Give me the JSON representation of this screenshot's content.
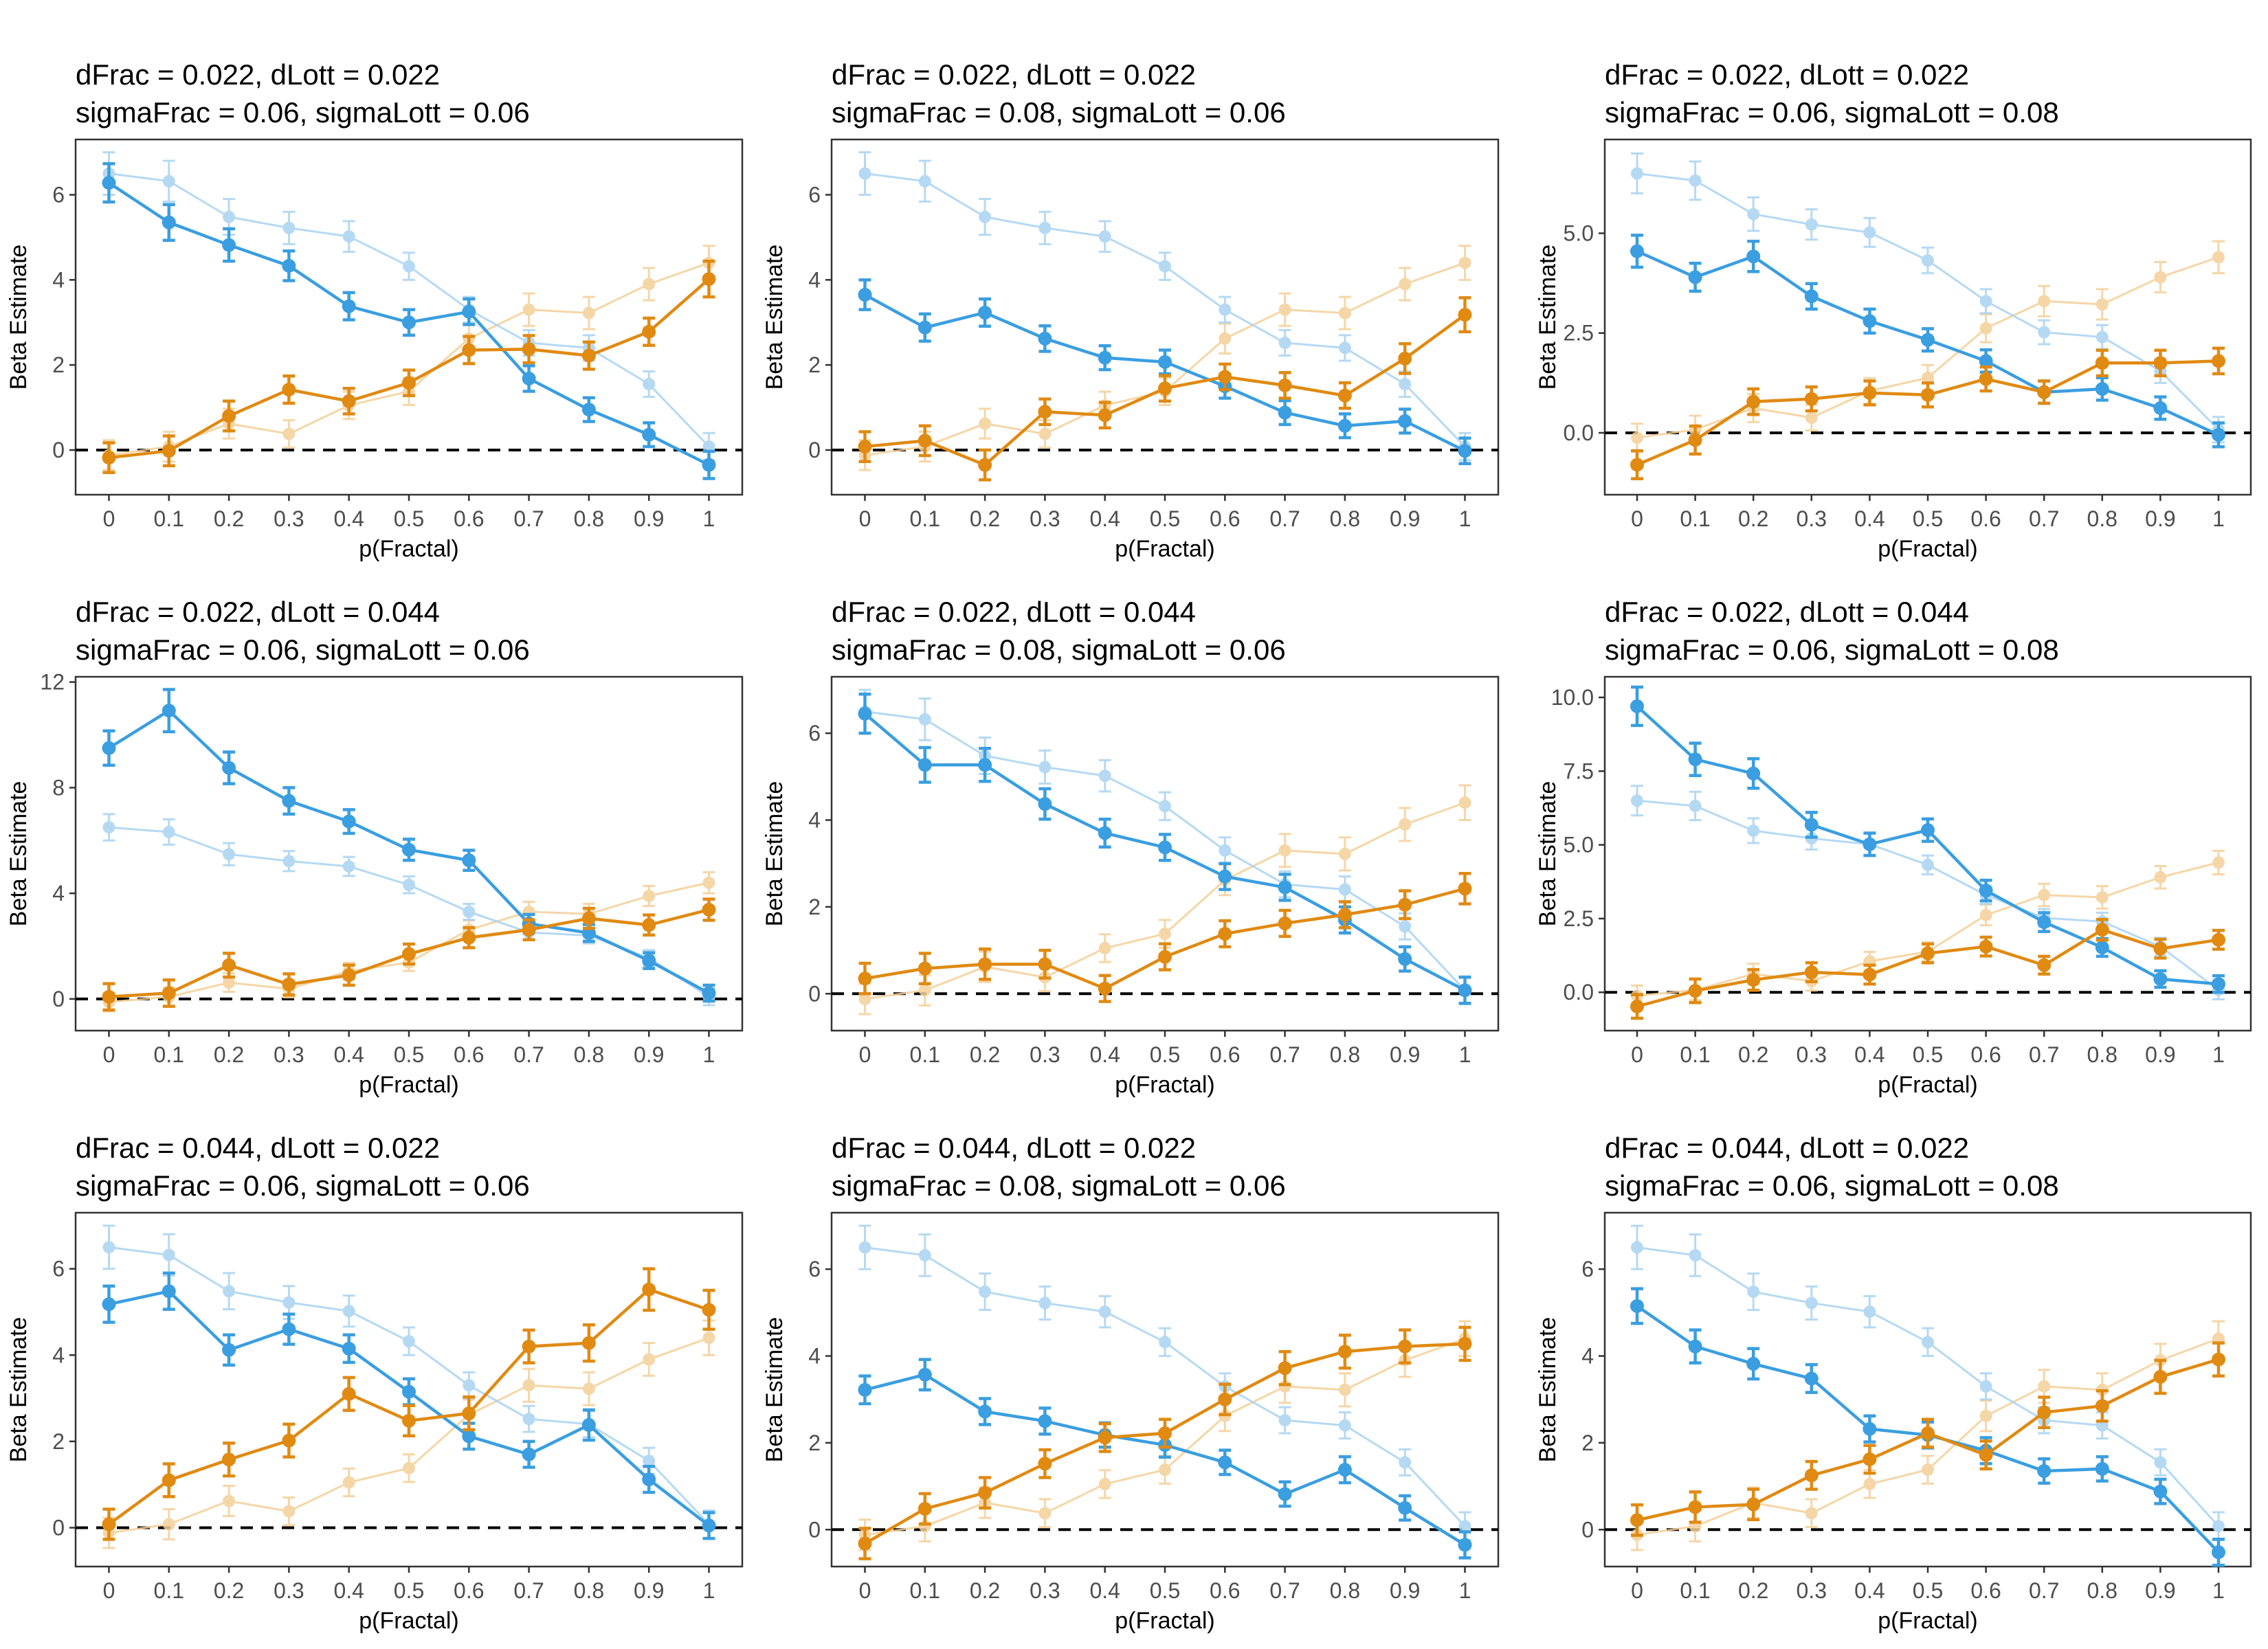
{
  "colors": {
    "fractal": "#3a9ee0",
    "lottery": "#e08a12",
    "fractal_ref": "#a9d3f2",
    "lottery_ref": "#f4cf98",
    "zero_line": "#000000",
    "frame": "#333333"
  },
  "chart_data": [
    {
      "type": "line",
      "title": [
        "dFrac = 0.022, dLott = 0.022",
        "sigmaFrac = 0.06, sigmaLott = 0.06"
      ],
      "xlabel": "p(Fractal)",
      "ylabel": "Beta Estimate",
      "x": [
        0,
        0.1,
        0.2,
        0.3,
        0.4,
        0.5,
        0.6,
        0.7,
        0.8,
        0.9,
        1
      ],
      "xticks": [
        "0",
        "0.1",
        "0.2",
        "0.3",
        "0.4",
        "0.5",
        "0.6",
        "0.7",
        "0.8",
        "0.9",
        "1"
      ],
      "ylim": [
        -1.05,
        7.3
      ],
      "yticks": [
        0,
        2,
        4,
        6
      ],
      "ytick_labels": [
        "0",
        "2",
        "4",
        "6"
      ],
      "reference_line": 0,
      "series": [
        {
          "role": "fractal",
          "values": [
            6.28,
            5.35,
            4.82,
            4.33,
            3.38,
            3.0,
            3.25,
            1.68,
            0.95,
            0.36,
            -0.35
          ],
          "err": [
            0.45,
            0.42,
            0.38,
            0.35,
            0.32,
            0.3,
            0.3,
            0.3,
            0.28,
            0.28,
            0.32
          ]
        },
        {
          "role": "lottery",
          "values": [
            -0.18,
            -0.02,
            0.8,
            1.42,
            1.15,
            1.58,
            2.35,
            2.37,
            2.22,
            2.78,
            4.02
          ],
          "err": [
            0.35,
            0.35,
            0.35,
            0.32,
            0.3,
            0.3,
            0.32,
            0.32,
            0.32,
            0.32,
            0.42
          ]
        }
      ]
    },
    {
      "type": "line",
      "title": [
        "dFrac = 0.022, dLott = 0.022",
        "sigmaFrac = 0.08, sigmaLott = 0.06"
      ],
      "xlabel": "p(Fractal)",
      "ylabel": "Beta Estimate",
      "x": [
        0,
        0.1,
        0.2,
        0.3,
        0.4,
        0.5,
        0.6,
        0.7,
        0.8,
        0.9,
        1
      ],
      "xticks": [
        "0",
        "0.1",
        "0.2",
        "0.3",
        "0.4",
        "0.5",
        "0.6",
        "0.7",
        "0.8",
        "0.9",
        "1"
      ],
      "ylim": [
        -1.05,
        7.3
      ],
      "yticks": [
        0,
        2,
        4,
        6
      ],
      "ytick_labels": [
        "0",
        "2",
        "4",
        "6"
      ],
      "reference_line": 0,
      "series": [
        {
          "role": "fractal",
          "values": [
            3.65,
            2.88,
            3.23,
            2.62,
            2.17,
            2.07,
            1.5,
            0.88,
            0.57,
            0.68,
            -0.02
          ],
          "err": [
            0.35,
            0.32,
            0.32,
            0.3,
            0.28,
            0.28,
            0.28,
            0.28,
            0.28,
            0.28,
            0.3
          ]
        },
        {
          "role": "lottery",
          "values": [
            0.08,
            0.22,
            -0.35,
            0.9,
            0.82,
            1.45,
            1.72,
            1.52,
            1.28,
            2.15,
            3.18
          ],
          "err": [
            0.35,
            0.35,
            0.35,
            0.3,
            0.3,
            0.3,
            0.3,
            0.3,
            0.3,
            0.35,
            0.4
          ]
        }
      ]
    },
    {
      "type": "line",
      "title": [
        "dFrac = 0.022, dLott = 0.022",
        "sigmaFrac = 0.06, sigmaLott = 0.08"
      ],
      "xlabel": "p(Fractal)",
      "ylabel": "Beta Estimate",
      "x": [
        0,
        0.1,
        0.2,
        0.3,
        0.4,
        0.5,
        0.6,
        0.7,
        0.8,
        0.9,
        1
      ],
      "xticks": [
        "0",
        "0.1",
        "0.2",
        "0.3",
        "0.4",
        "0.5",
        "0.6",
        "0.7",
        "0.8",
        "0.9",
        "1"
      ],
      "ylim": [
        -1.55,
        7.35
      ],
      "yticks": [
        0,
        2.5,
        5
      ],
      "ytick_labels": [
        "0.0",
        "2.5",
        "5.0"
      ],
      "reference_line": 0,
      "series": [
        {
          "role": "fractal",
          "values": [
            4.55,
            3.9,
            4.42,
            3.42,
            2.8,
            2.33,
            1.8,
            1.02,
            1.1,
            0.62,
            -0.05
          ],
          "err": [
            0.4,
            0.35,
            0.38,
            0.32,
            0.3,
            0.28,
            0.28,
            0.28,
            0.28,
            0.28,
            0.3
          ]
        },
        {
          "role": "lottery",
          "values": [
            -0.8,
            -0.18,
            0.78,
            0.85,
            1.0,
            0.95,
            1.35,
            1.02,
            1.75,
            1.75,
            1.8
          ],
          "err": [
            0.35,
            0.35,
            0.32,
            0.3,
            0.3,
            0.3,
            0.3,
            0.28,
            0.32,
            0.32,
            0.32
          ]
        }
      ]
    },
    {
      "type": "line",
      "title": [
        "dFrac = 0.022, dLott = 0.044",
        "sigmaFrac = 0.06, sigmaLott = 0.06"
      ],
      "xlabel": "p(Fractal)",
      "ylabel": "Beta Estimate",
      "x": [
        0,
        0.1,
        0.2,
        0.3,
        0.4,
        0.5,
        0.6,
        0.7,
        0.8,
        0.9,
        1
      ],
      "xticks": [
        "0",
        "0.1",
        "0.2",
        "0.3",
        "0.4",
        "0.5",
        "0.6",
        "0.7",
        "0.8",
        "0.9",
        "1"
      ],
      "ylim": [
        -1.2,
        12.2
      ],
      "yticks": [
        0,
        4,
        8,
        12
      ],
      "ytick_labels": [
        "0",
        "4",
        "8",
        "12"
      ],
      "reference_line": 0,
      "series": [
        {
          "role": "fractal",
          "values": [
            9.5,
            10.92,
            8.75,
            7.5,
            6.72,
            5.65,
            5.25,
            2.85,
            2.5,
            1.45,
            0.22
          ],
          "err": [
            0.65,
            0.8,
            0.6,
            0.5,
            0.45,
            0.4,
            0.38,
            0.35,
            0.32,
            0.3,
            0.3
          ]
        },
        {
          "role": "lottery",
          "values": [
            0.08,
            0.22,
            1.28,
            0.55,
            0.9,
            1.7,
            2.32,
            2.62,
            3.05,
            2.8,
            3.38
          ],
          "err": [
            0.5,
            0.5,
            0.45,
            0.4,
            0.38,
            0.38,
            0.38,
            0.38,
            0.38,
            0.38,
            0.4
          ]
        }
      ]
    },
    {
      "type": "line",
      "title": [
        "dFrac = 0.022, dLott = 0.044",
        "sigmaFrac = 0.08, sigmaLott = 0.06"
      ],
      "xlabel": "p(Fractal)",
      "ylabel": "Beta Estimate",
      "x": [
        0,
        0.1,
        0.2,
        0.3,
        0.4,
        0.5,
        0.6,
        0.7,
        0.8,
        0.9,
        1
      ],
      "xticks": [
        "0",
        "0.1",
        "0.2",
        "0.3",
        "0.4",
        "0.5",
        "0.6",
        "0.7",
        "0.8",
        "0.9",
        "1"
      ],
      "ylim": [
        -0.85,
        7.3
      ],
      "yticks": [
        0,
        2,
        4,
        6
      ],
      "ytick_labels": [
        "0",
        "2",
        "4",
        "6"
      ],
      "reference_line": 0,
      "series": [
        {
          "role": "fractal",
          "values": [
            6.45,
            5.27,
            5.27,
            4.37,
            3.7,
            3.37,
            2.7,
            2.45,
            1.7,
            0.8,
            0.08
          ],
          "err": [
            0.45,
            0.4,
            0.38,
            0.35,
            0.32,
            0.3,
            0.3,
            0.3,
            0.3,
            0.28,
            0.3
          ]
        },
        {
          "role": "lottery",
          "values": [
            0.35,
            0.58,
            0.68,
            0.68,
            0.12,
            0.85,
            1.38,
            1.62,
            1.82,
            2.05,
            2.42
          ],
          "err": [
            0.35,
            0.35,
            0.35,
            0.32,
            0.3,
            0.3,
            0.3,
            0.3,
            0.3,
            0.32,
            0.35
          ]
        }
      ]
    },
    {
      "type": "line",
      "title": [
        "dFrac = 0.022, dLott = 0.044",
        "sigmaFrac = 0.06, sigmaLott = 0.08"
      ],
      "xlabel": "p(Fractal)",
      "ylabel": "Beta Estimate",
      "x": [
        0,
        0.1,
        0.2,
        0.3,
        0.4,
        0.5,
        0.6,
        0.7,
        0.8,
        0.9,
        1
      ],
      "xticks": [
        "0",
        "0.1",
        "0.2",
        "0.3",
        "0.4",
        "0.5",
        "0.6",
        "0.7",
        "0.8",
        "0.9",
        "1"
      ],
      "ylim": [
        -1.3,
        10.7
      ],
      "yticks": [
        0,
        2.5,
        5,
        7.5,
        10
      ],
      "ytick_labels": [
        "0.0",
        "2.5",
        "5.0",
        "7.5",
        "10.0"
      ],
      "reference_line": 0,
      "series": [
        {
          "role": "fractal",
          "values": [
            9.7,
            7.9,
            7.42,
            5.68,
            5.02,
            5.5,
            3.45,
            2.38,
            1.52,
            0.45,
            0.28
          ],
          "err": [
            0.65,
            0.55,
            0.5,
            0.42,
            0.38,
            0.38,
            0.35,
            0.32,
            0.3,
            0.28,
            0.28
          ]
        },
        {
          "role": "lottery",
          "values": [
            -0.48,
            0.05,
            0.42,
            0.68,
            0.6,
            1.32,
            1.55,
            0.92,
            2.12,
            1.48,
            1.78
          ],
          "err": [
            0.4,
            0.4,
            0.35,
            0.32,
            0.32,
            0.32,
            0.32,
            0.3,
            0.35,
            0.32,
            0.32
          ]
        }
      ]
    },
    {
      "type": "line",
      "title": [
        "dFrac = 0.044, dLott = 0.022",
        "sigmaFrac = 0.06, sigmaLott = 0.06"
      ],
      "xlabel": "p(Fractal)",
      "ylabel": "Beta Estimate",
      "x": [
        0,
        0.1,
        0.2,
        0.3,
        0.4,
        0.5,
        0.6,
        0.7,
        0.8,
        0.9,
        1
      ],
      "xticks": [
        "0",
        "0.1",
        "0.2",
        "0.3",
        "0.4",
        "0.5",
        "0.6",
        "0.7",
        "0.8",
        "0.9",
        "1"
      ],
      "ylim": [
        -0.9,
        7.3
      ],
      "yticks": [
        0,
        2,
        4,
        6
      ],
      "ytick_labels": [
        "0",
        "2",
        "4",
        "6"
      ],
      "reference_line": 0,
      "series": [
        {
          "role": "fractal",
          "values": [
            5.18,
            5.48,
            4.12,
            4.6,
            4.15,
            3.15,
            2.12,
            1.7,
            2.38,
            1.12,
            0.05
          ],
          "err": [
            0.42,
            0.42,
            0.35,
            0.35,
            0.32,
            0.3,
            0.3,
            0.3,
            0.35,
            0.3,
            0.3
          ]
        },
        {
          "role": "lottery",
          "values": [
            0.08,
            1.1,
            1.58,
            2.02,
            3.1,
            2.48,
            2.65,
            4.2,
            4.28,
            5.52,
            5.05
          ],
          "err": [
            0.35,
            0.38,
            0.38,
            0.38,
            0.38,
            0.35,
            0.38,
            0.38,
            0.42,
            0.48,
            0.45
          ]
        }
      ]
    },
    {
      "type": "line",
      "title": [
        "dFrac = 0.044, dLott = 0.022",
        "sigmaFrac = 0.08, sigmaLott = 0.06"
      ],
      "xlabel": "p(Fractal)",
      "ylabel": "Beta Estimate",
      "x": [
        0,
        0.1,
        0.2,
        0.3,
        0.4,
        0.5,
        0.6,
        0.7,
        0.8,
        0.9,
        1
      ],
      "xticks": [
        "0",
        "0.1",
        "0.2",
        "0.3",
        "0.4",
        "0.5",
        "0.6",
        "0.7",
        "0.8",
        "0.9",
        "1"
      ],
      "ylim": [
        -0.85,
        7.3
      ],
      "yticks": [
        0,
        2,
        4,
        6
      ],
      "ytick_labels": [
        "0",
        "2",
        "4",
        "6"
      ],
      "reference_line": 0,
      "series": [
        {
          "role": "fractal",
          "values": [
            3.22,
            3.57,
            2.72,
            2.5,
            2.18,
            1.95,
            1.55,
            0.82,
            1.38,
            0.5,
            -0.35
          ],
          "err": [
            0.32,
            0.35,
            0.3,
            0.3,
            0.28,
            0.28,
            0.28,
            0.28,
            0.3,
            0.28,
            0.3
          ]
        },
        {
          "role": "lottery",
          "values": [
            -0.32,
            0.48,
            0.85,
            1.52,
            2.12,
            2.22,
            3.0,
            3.72,
            4.1,
            4.22,
            4.28
          ],
          "err": [
            0.35,
            0.35,
            0.35,
            0.32,
            0.32,
            0.32,
            0.35,
            0.38,
            0.38,
            0.38,
            0.38
          ]
        }
      ]
    },
    {
      "type": "line",
      "title": [
        "dFrac = 0.044, dLott = 0.022",
        "sigmaFrac = 0.06, sigmaLott = 0.08"
      ],
      "xlabel": "p(Fractal)",
      "ylabel": "Beta Estimate",
      "x": [
        0,
        0.1,
        0.2,
        0.3,
        0.4,
        0.5,
        0.6,
        0.7,
        0.8,
        0.9,
        1
      ],
      "xticks": [
        "0",
        "0.1",
        "0.2",
        "0.3",
        "0.4",
        "0.5",
        "0.6",
        "0.7",
        "0.8",
        "0.9",
        "1"
      ],
      "ylim": [
        -0.85,
        7.3
      ],
      "yticks": [
        0,
        2,
        4,
        6
      ],
      "ytick_labels": [
        "0",
        "2",
        "4",
        "6"
      ],
      "reference_line": 0,
      "series": [
        {
          "role": "fractal",
          "values": [
            5.15,
            4.22,
            3.82,
            3.48,
            2.32,
            2.18,
            1.82,
            1.35,
            1.4,
            0.88,
            -0.52
          ],
          "err": [
            0.4,
            0.38,
            0.35,
            0.32,
            0.3,
            0.3,
            0.3,
            0.28,
            0.28,
            0.28,
            0.3
          ]
        },
        {
          "role": "lottery",
          "values": [
            0.22,
            0.52,
            0.58,
            1.25,
            1.62,
            2.22,
            1.72,
            2.7,
            2.85,
            3.52,
            3.92
          ],
          "err": [
            0.35,
            0.35,
            0.35,
            0.32,
            0.32,
            0.32,
            0.32,
            0.35,
            0.35,
            0.38,
            0.38
          ]
        }
      ]
    }
  ],
  "reference_series": {
    "fractal": {
      "values": [
        6.5,
        6.32,
        5.48,
        5.22,
        5.02,
        4.32,
        3.3,
        2.52,
        2.4,
        1.55,
        0.08
      ],
      "err": [
        0.5,
        0.48,
        0.42,
        0.38,
        0.36,
        0.32,
        0.3,
        0.3,
        0.3,
        0.3,
        0.32
      ]
    },
    "lottery": {
      "values": [
        -0.12,
        0.08,
        0.62,
        0.38,
        1.05,
        1.38,
        2.62,
        3.3,
        3.22,
        3.9,
        4.4
      ],
      "err": [
        0.35,
        0.35,
        0.35,
        0.32,
        0.32,
        0.32,
        0.35,
        0.38,
        0.38,
        0.38,
        0.4
      ]
    }
  }
}
